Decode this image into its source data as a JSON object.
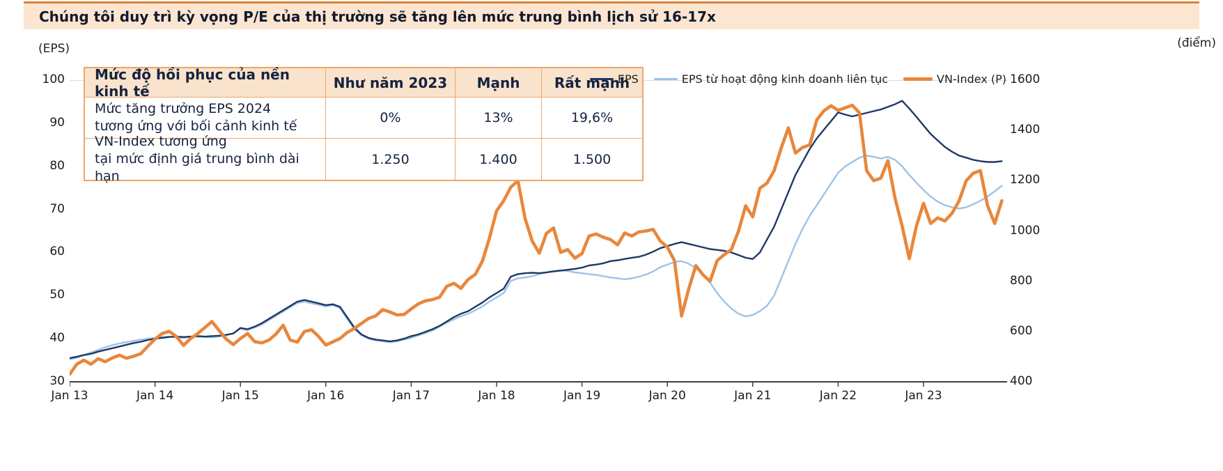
{
  "header": {
    "title": "Chúng tôi duy trì kỳ vọng P/E của thị trường sẽ tăng lên mức trung bình lịch sử 16-17x"
  },
  "axis_units": {
    "left": "(EPS)",
    "right": "(điểm)"
  },
  "table": {
    "header": [
      "Mức độ hồi phục của nền kinh tế",
      "Như năm 2023",
      "Mạnh",
      "Rất mạnh"
    ],
    "rows": [
      {
        "label_line1": "Mức tăng trưởng EPS 2024",
        "label_line2": "tương ứng với bối cảnh kinh tế",
        "values": [
          "0%",
          "13%",
          "19,6%"
        ]
      },
      {
        "label_line1": "VN-Index tương ứng",
        "label_line2": "tại mức định giá trung bình dài hạn",
        "values": [
          "1.250",
          "1.400",
          "1.500"
        ]
      }
    ]
  },
  "legend": [
    {
      "label": "EPS",
      "color": "#1F3864",
      "thickness": 3
    },
    {
      "label": "EPS từ hoạt động kinh doanh liên tục",
      "color": "#9DC3E6",
      "thickness": 3
    },
    {
      "label": "VN-Index (P)",
      "color": "#E8873C",
      "thickness": 5
    }
  ],
  "chart_data": {
    "type": "line",
    "title": "",
    "x_unit": "month",
    "x_start_month": "2013-01",
    "x_end_month": "2023-12",
    "x_tick_labels": [
      "Jan 13",
      "Jan 14",
      "Jan 15",
      "Jan 16",
      "Jan 17",
      "Jan 18",
      "Jan 19",
      "Jan 20",
      "Jan 21",
      "Jan 22",
      "Jan 23"
    ],
    "left_axis": {
      "unit": "EPS",
      "range": [
        30,
        100
      ],
      "ticks": [
        100,
        90,
        80,
        70,
        60,
        50,
        40,
        30
      ]
    },
    "right_axis": {
      "unit": "điểm",
      "range": [
        400,
        1600
      ],
      "ticks": [
        1600,
        1400,
        1200,
        1000,
        800,
        600,
        400
      ]
    },
    "grid": false,
    "legend_position": "top-right",
    "series": [
      {
        "id": "eps",
        "name": "EPS",
        "axis": "left",
        "color": "#1F3864",
        "stroke_width": 2.4,
        "values": [
          35.5,
          35.8,
          36.2,
          36.5,
          37.0,
          37.4,
          37.8,
          38.2,
          38.6,
          39.0,
          39.3,
          39.7,
          40.0,
          40.2,
          40.4,
          40.5,
          40.4,
          40.5,
          40.6,
          40.5,
          40.6,
          40.7,
          40.9,
          41.2,
          42.5,
          42.2,
          42.8,
          43.6,
          44.6,
          45.6,
          46.6,
          47.6,
          48.6,
          49.0,
          48.6,
          48.2,
          47.8,
          48.0,
          47.4,
          45.0,
          42.6,
          41.0,
          40.2,
          39.8,
          39.6,
          39.4,
          39.6,
          40.0,
          40.6,
          41.0,
          41.6,
          42.2,
          43.0,
          44.0,
          45.0,
          45.8,
          46.4,
          47.4,
          48.4,
          49.6,
          50.6,
          51.6,
          54.4,
          55.0,
          55.2,
          55.3,
          55.2,
          55.4,
          55.6,
          55.8,
          56.0,
          56.2,
          56.5,
          57.0,
          57.2,
          57.5,
          58.0,
          58.2,
          58.5,
          58.8,
          59.0,
          59.5,
          60.2,
          61.0,
          61.5,
          62.0,
          62.4,
          62.0,
          61.6,
          61.2,
          60.8,
          60.6,
          60.4,
          60.0,
          59.4,
          58.8,
          58.5,
          60.0,
          63.0,
          66.0,
          70.0,
          74.0,
          78.0,
          81.0,
          84.0,
          86.5,
          88.5,
          90.5,
          92.5,
          92.0,
          91.6,
          92.0,
          92.4,
          92.8,
          93.2,
          93.8,
          94.4,
          95.2,
          93.4,
          91.5,
          89.5,
          87.5,
          86.0,
          84.5,
          83.4,
          82.5,
          82.0,
          81.5,
          81.2,
          81.0,
          81.0,
          81.2
        ]
      },
      {
        "id": "eps-continuing",
        "name": "EPS từ hoạt động kinh doanh liên tục",
        "axis": "left",
        "color": "#9DC3E6",
        "stroke_width": 2.4,
        "values": [
          35.2,
          35.6,
          36.2,
          36.8,
          37.4,
          38.0,
          38.5,
          38.9,
          39.2,
          39.5,
          39.8,
          40.0,
          40.2,
          40.4,
          40.5,
          40.3,
          40.2,
          40.4,
          40.5,
          40.4,
          40.3,
          40.5,
          40.8,
          41.3,
          42.3,
          42.0,
          42.6,
          43.3,
          44.3,
          45.3,
          46.3,
          47.3,
          48.3,
          48.6,
          48.2,
          47.9,
          47.5,
          47.8,
          47.1,
          44.6,
          42.2,
          40.8,
          40.0,
          39.6,
          39.4,
          39.2,
          39.4,
          39.8,
          40.2,
          40.8,
          41.3,
          41.9,
          42.8,
          43.7,
          44.5,
          45.2,
          45.8,
          46.6,
          47.5,
          48.6,
          49.6,
          50.6,
          53.4,
          54.0,
          54.2,
          54.5,
          55.0,
          55.4,
          55.7,
          55.9,
          55.7,
          55.4,
          55.2,
          55.0,
          54.8,
          54.5,
          54.2,
          54.0,
          53.8,
          54.0,
          54.4,
          54.9,
          55.6,
          56.6,
          57.2,
          57.8,
          58.0,
          57.4,
          56.4,
          55.0,
          53.0,
          50.6,
          48.6,
          47.0,
          45.8,
          45.2,
          45.5,
          46.4,
          47.6,
          50.0,
          54.0,
          58.0,
          62.0,
          65.5,
          68.5,
          71.0,
          73.5,
          76.0,
          78.5,
          80.0,
          81.0,
          82.0,
          82.5,
          82.2,
          81.8,
          82.2,
          81.5,
          80.0,
          78.0,
          76.2,
          74.5,
          73.0,
          71.8,
          71.0,
          70.5,
          70.2,
          70.5,
          71.2,
          72.0,
          73.0,
          74.2,
          75.5
        ]
      },
      {
        "id": "vn-index",
        "name": "VN-Index (P)",
        "axis": "right",
        "color": "#E8873C",
        "stroke_width": 4.6,
        "values": [
          430,
          470,
          486,
          470,
          492,
          480,
          495,
          506,
          494,
          502,
          512,
          542,
          570,
          592,
          601,
          580,
          545,
          572,
          592,
          616,
          640,
          604,
          570,
          548,
          572,
          592,
          560,
          555,
          566,
          590,
          625,
          566,
          558,
          600,
          607,
          580,
          546,
          559,
          572,
          596,
          612,
          632,
          652,
          662,
          687,
          678,
          666,
          668,
          690,
          710,
          722,
          727,
          737,
          780,
          792,
          772,
          807,
          827,
          880,
          972,
          1080,
          1120,
          1174,
          1200,
          1050,
          960,
          912,
          990,
          1012,
          915,
          926,
          892,
          910,
          980,
          988,
          975,
          966,
          945,
          992,
          980,
          996,
          1000,
          1006,
          960,
          936,
          882,
          662,
          770,
          862,
          826,
          800,
          882,
          906,
          926,
          1000,
          1100,
          1056,
          1170,
          1190,
          1240,
          1330,
          1410,
          1310,
          1332,
          1342,
          1442,
          1478,
          1498,
          1480,
          1490,
          1500,
          1470,
          1240,
          1200,
          1210,
          1280,
          1130,
          1020,
          890,
          1020,
          1110,
          1030,
          1052,
          1040,
          1070,
          1120,
          1200,
          1230,
          1240,
          1100,
          1030,
          1120
        ]
      }
    ]
  }
}
